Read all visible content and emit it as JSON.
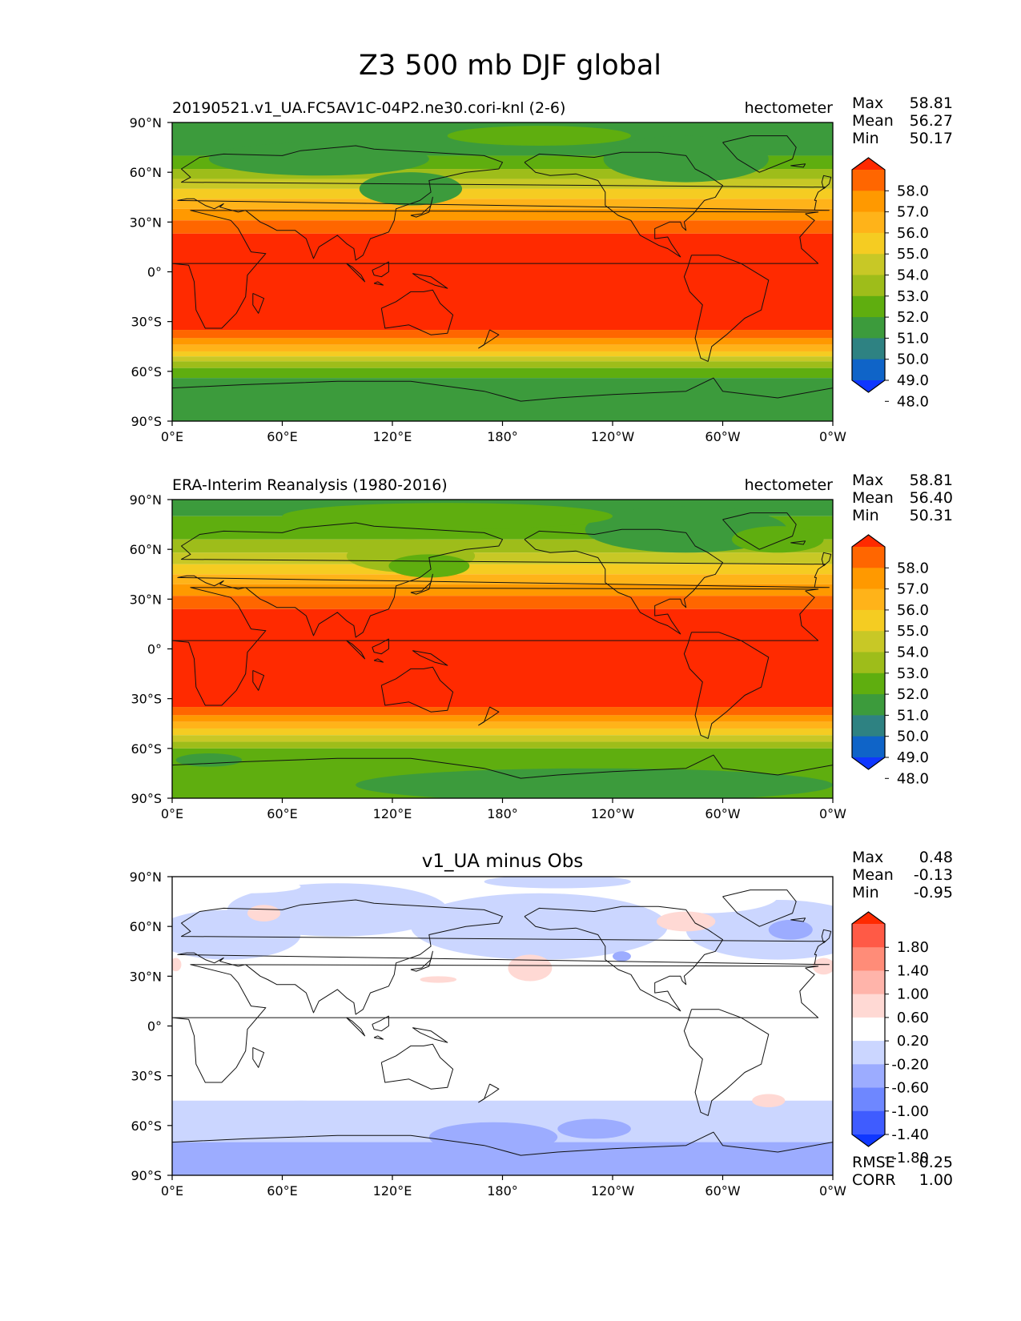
{
  "chart_data": {
    "type": "heatmap",
    "title": "Z3 500 mb DJF global",
    "x_ticks": [
      "0°E",
      "60°E",
      "120°E",
      "180°",
      "120°W",
      "60°W",
      "0°W"
    ],
    "y_ticks": [
      "90°N",
      "60°N",
      "30°N",
      "0°",
      "30°S",
      "60°S",
      "90°S"
    ],
    "x_range": [
      0,
      360
    ],
    "y_range": [
      -90,
      90
    ],
    "panels": [
      {
        "id": "test",
        "left_title": "20190521.v1_UA.FC5AV1C-04P2.ne30.cori-knl (2-6)",
        "center_title": "",
        "right_title": "hectometer",
        "stats": [
          {
            "label": "Max",
            "value": "58.81"
          },
          {
            "label": "Mean",
            "value": "56.27"
          },
          {
            "label": "Min",
            "value": "50.17"
          }
        ],
        "colorbar": {
          "labels": [
            "58.0",
            "57.0",
            "56.0",
            "55.0",
            "54.0",
            "53.0",
            "52.0",
            "51.0",
            "50.0",
            "49.0",
            "48.0"
          ],
          "colors": [
            "#ff2a00",
            "#ff6600",
            "#ff9900",
            "#ffb319",
            "#f5cc22",
            "#c8c826",
            "#9ebd1a",
            "#5fae0f",
            "#3c9b3c",
            "#2e8282",
            "#0f64c8",
            "#0f37ff"
          ]
        },
        "bands": [
          {
            "lat_min": 70,
            "lat_max": 90,
            "color": "#3c9b3c"
          },
          {
            "lat_min": 62,
            "lat_max": 70,
            "color": "#5fae0f"
          },
          {
            "lat_min": 56,
            "lat_max": 62,
            "color": "#9ebd1a"
          },
          {
            "lat_min": 50,
            "lat_max": 56,
            "color": "#c8c826"
          },
          {
            "lat_min": 44,
            "lat_max": 50,
            "color": "#f5cc22"
          },
          {
            "lat_min": 38,
            "lat_max": 44,
            "color": "#ffb319"
          },
          {
            "lat_min": 31,
            "lat_max": 38,
            "color": "#ff9900"
          },
          {
            "lat_min": 23,
            "lat_max": 31,
            "color": "#ff6600"
          },
          {
            "lat_min": -35,
            "lat_max": 23,
            "color": "#ff2a00"
          },
          {
            "lat_min": -40,
            "lat_max": -35,
            "color": "#ff6600"
          },
          {
            "lat_min": -44,
            "lat_max": -40,
            "color": "#ff9900"
          },
          {
            "lat_min": -48,
            "lat_max": -44,
            "color": "#ffb319"
          },
          {
            "lat_min": -51,
            "lat_max": -48,
            "color": "#f5cc22"
          },
          {
            "lat_min": -54,
            "lat_max": -51,
            "color": "#c8c826"
          },
          {
            "lat_min": -58,
            "lat_max": -54,
            "color": "#9ebd1a"
          },
          {
            "lat_min": -64,
            "lat_max": -58,
            "color": "#5fae0f"
          },
          {
            "lat_min": -90,
            "lat_max": -64,
            "color": "#3c9b3c"
          }
        ],
        "blobs": [
          {
            "lon": 80,
            "lat": 68,
            "rlon": 60,
            "rlat": 10,
            "color": "#3c9b3c"
          },
          {
            "lon": 130,
            "lat": 50,
            "rlon": 28,
            "rlat": 10,
            "color": "#3c9b3c"
          },
          {
            "lon": 280,
            "lat": 68,
            "rlon": 45,
            "rlat": 14,
            "color": "#3c9b3c"
          },
          {
            "lon": 200,
            "lat": 82,
            "rlon": 50,
            "rlat": 6,
            "color": "#5fae0f"
          }
        ],
        "diff_stats": []
      },
      {
        "id": "ref",
        "left_title": "ERA-Interim Reanalysis (1980-2016)",
        "center_title": "",
        "right_title": "hectometer",
        "stats": [
          {
            "label": "Max",
            "value": "58.81"
          },
          {
            "label": "Mean",
            "value": "56.40"
          },
          {
            "label": "Min",
            "value": "50.31"
          }
        ],
        "colorbar": {
          "labels": [
            "58.0",
            "57.0",
            "56.0",
            "55.0",
            "54.0",
            "53.0",
            "52.0",
            "51.0",
            "50.0",
            "49.0",
            "48.0"
          ],
          "colors": [
            "#ff2a00",
            "#ff6600",
            "#ff9900",
            "#ffb319",
            "#f5cc22",
            "#c8c826",
            "#9ebd1a",
            "#5fae0f",
            "#3c9b3c",
            "#2e8282",
            "#0f64c8",
            "#0f37ff"
          ]
        },
        "bands": [
          {
            "lat_min": 80,
            "lat_max": 90,
            "color": "#3c9b3c"
          },
          {
            "lat_min": 66,
            "lat_max": 80,
            "color": "#5fae0f"
          },
          {
            "lat_min": 58,
            "lat_max": 66,
            "color": "#9ebd1a"
          },
          {
            "lat_min": 51,
            "lat_max": 58,
            "color": "#c8c826"
          },
          {
            "lat_min": 45,
            "lat_max": 51,
            "color": "#f5cc22"
          },
          {
            "lat_min": 39,
            "lat_max": 45,
            "color": "#ffb319"
          },
          {
            "lat_min": 32,
            "lat_max": 39,
            "color": "#ff9900"
          },
          {
            "lat_min": 24,
            "lat_max": 32,
            "color": "#ff6600"
          },
          {
            "lat_min": -35,
            "lat_max": 24,
            "color": "#ff2a00"
          },
          {
            "lat_min": -40,
            "lat_max": -35,
            "color": "#ff6600"
          },
          {
            "lat_min": -44,
            "lat_max": -40,
            "color": "#ff9900"
          },
          {
            "lat_min": -48,
            "lat_max": -44,
            "color": "#ffb319"
          },
          {
            "lat_min": -52,
            "lat_max": -48,
            "color": "#f5cc22"
          },
          {
            "lat_min": -56,
            "lat_max": -52,
            "color": "#c8c826"
          },
          {
            "lat_min": -60,
            "lat_max": -56,
            "color": "#9ebd1a"
          },
          {
            "lat_min": -90,
            "lat_max": -60,
            "color": "#5fae0f"
          }
        ],
        "blobs": [
          {
            "lon": 130,
            "lat": 56,
            "rlon": 35,
            "rlat": 10,
            "color": "#9ebd1a"
          },
          {
            "lon": 140,
            "lat": 50,
            "rlon": 22,
            "rlat": 7,
            "color": "#5fae0f"
          },
          {
            "lon": 280,
            "lat": 72,
            "rlon": 55,
            "rlat": 14,
            "color": "#3c9b3c"
          },
          {
            "lon": 330,
            "lat": 66,
            "rlon": 25,
            "rlat": 8,
            "color": "#5fae0f"
          },
          {
            "lon": 150,
            "lat": 80,
            "rlon": 90,
            "rlat": 8,
            "color": "#5fae0f"
          },
          {
            "lon": 20,
            "lat": -67,
            "rlon": 18,
            "rlat": 4,
            "color": "#3c9b3c"
          },
          {
            "lon": 230,
            "lat": -82,
            "rlon": 130,
            "rlat": 10,
            "color": "#3c9b3c"
          }
        ],
        "diff_stats": []
      },
      {
        "id": "diff",
        "left_title": "",
        "center_title": "v1_UA minus Obs",
        "right_title": "",
        "stats": [
          {
            "label": "Max",
            "value": "0.48"
          },
          {
            "label": "Mean",
            "value": "-0.13"
          },
          {
            "label": "Min",
            "value": "-0.95"
          }
        ],
        "colorbar": {
          "labels": [
            "1.80",
            "1.40",
            "1.00",
            "0.60",
            "0.20",
            "-0.20",
            "-0.60",
            "-1.00",
            "-1.40",
            "-1.80"
          ],
          "colors": [
            "#ff2a00",
            "#ff5a46",
            "#ff8c78",
            "#ffb4aa",
            "#ffd9d4",
            "#ffffff",
            "#cbd6ff",
            "#9cacff",
            "#6e87ff",
            "#3f5cff",
            "#0f37ff"
          ]
        },
        "bands": [
          {
            "lat_min": -90,
            "lat_max": 90,
            "color": "#ffffff"
          },
          {
            "lat_min": -90,
            "lat_max": -70,
            "color": "#9cacff"
          },
          {
            "lat_min": -70,
            "lat_max": -45,
            "color": "#cbd6ff"
          }
        ],
        "blobs": [
          {
            "lon": 90,
            "lat": 70,
            "rlon": 60,
            "rlat": 16,
            "color": "#cbd6ff"
          },
          {
            "lon": 30,
            "lat": 55,
            "rlon": 40,
            "rlat": 15,
            "color": "#cbd6ff"
          },
          {
            "lon": 200,
            "lat": 60,
            "rlon": 70,
            "rlat": 20,
            "color": "#cbd6ff"
          },
          {
            "lon": 330,
            "lat": 58,
            "rlon": 50,
            "rlat": 18,
            "color": "#cbd6ff"
          },
          {
            "lon": 337,
            "lat": 58,
            "rlon": 12,
            "rlat": 6,
            "color": "#9cacff"
          },
          {
            "lon": 245,
            "lat": 42,
            "rlon": 5,
            "rlat": 3,
            "color": "#9cacff"
          },
          {
            "lon": 210,
            "lat": 87,
            "rlon": 40,
            "rlat": 4,
            "color": "#cbd6ff"
          },
          {
            "lon": 290,
            "lat": 78,
            "rlon": 40,
            "rlat": 10,
            "color": "#ffffff"
          },
          {
            "lon": 40,
            "lat": 84,
            "rlon": 30,
            "rlat": 4,
            "color": "#ffffff"
          },
          {
            "lon": 50,
            "lat": 68,
            "rlon": 9,
            "rlat": 5,
            "color": "#ffd9d4"
          },
          {
            "lon": 195,
            "lat": 35,
            "rlon": 12,
            "rlat": 8,
            "color": "#ffd9d4"
          },
          {
            "lon": 145,
            "lat": 28,
            "rlon": 10,
            "rlat": 2,
            "color": "#ffd9d4"
          },
          {
            "lon": 280,
            "lat": 63,
            "rlon": 16,
            "rlat": 6,
            "color": "#ffd9d4"
          },
          {
            "lon": 355,
            "lat": 36,
            "rlon": 6,
            "rlat": 5,
            "color": "#ffd9d4"
          },
          {
            "lon": 2,
            "lat": 37,
            "rlon": 3,
            "rlat": 4,
            "color": "#ffd9d4"
          },
          {
            "lon": 325,
            "lat": -45,
            "rlon": 9,
            "rlat": 4,
            "color": "#ffd9d4"
          },
          {
            "lon": 175,
            "lat": -67,
            "rlon": 35,
            "rlat": 9,
            "color": "#9cacff"
          },
          {
            "lon": 230,
            "lat": -62,
            "rlon": 20,
            "rlat": 6,
            "color": "#9cacff"
          },
          {
            "lon": 70,
            "lat": -48,
            "rlon": 15,
            "rlat": 3,
            "color": "#cbd6ff"
          }
        ],
        "diff_stats": [
          {
            "label": "RMSE",
            "value": "0.25"
          },
          {
            "label": "CORR",
            "value": "1.00"
          }
        ]
      }
    ]
  }
}
